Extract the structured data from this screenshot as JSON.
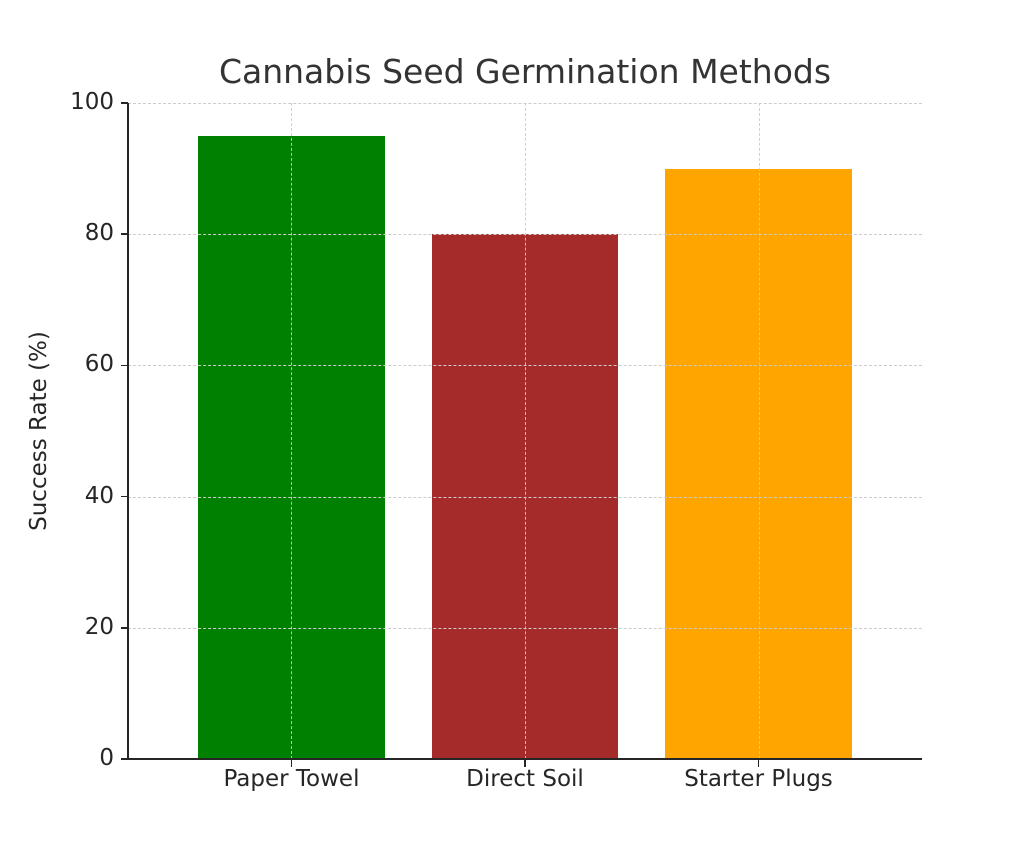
{
  "chart_data": {
    "type": "bar",
    "title": "Cannabis Seed Germination Methods",
    "xlabel": "",
    "ylabel": "Success Rate (%)",
    "categories": [
      "Paper Towel",
      "Direct Soil",
      "Starter Plugs"
    ],
    "values": [
      95,
      80,
      90
    ],
    "colors": [
      "#008000",
      "#a52a2a",
      "#ffa500"
    ],
    "ylim": [
      0,
      100
    ],
    "yticks": [
      0,
      20,
      40,
      60,
      80,
      100
    ],
    "grid": true,
    "grid_style": "dashed",
    "legend": null
  },
  "labels": {
    "title": "Cannabis Seed Germination Methods",
    "ylabel": "Success Rate (%)",
    "yticks": [
      "0",
      "20",
      "40",
      "60",
      "80",
      "100"
    ],
    "xticks": [
      "Paper Towel",
      "Direct Soil",
      "Starter Plugs"
    ]
  }
}
